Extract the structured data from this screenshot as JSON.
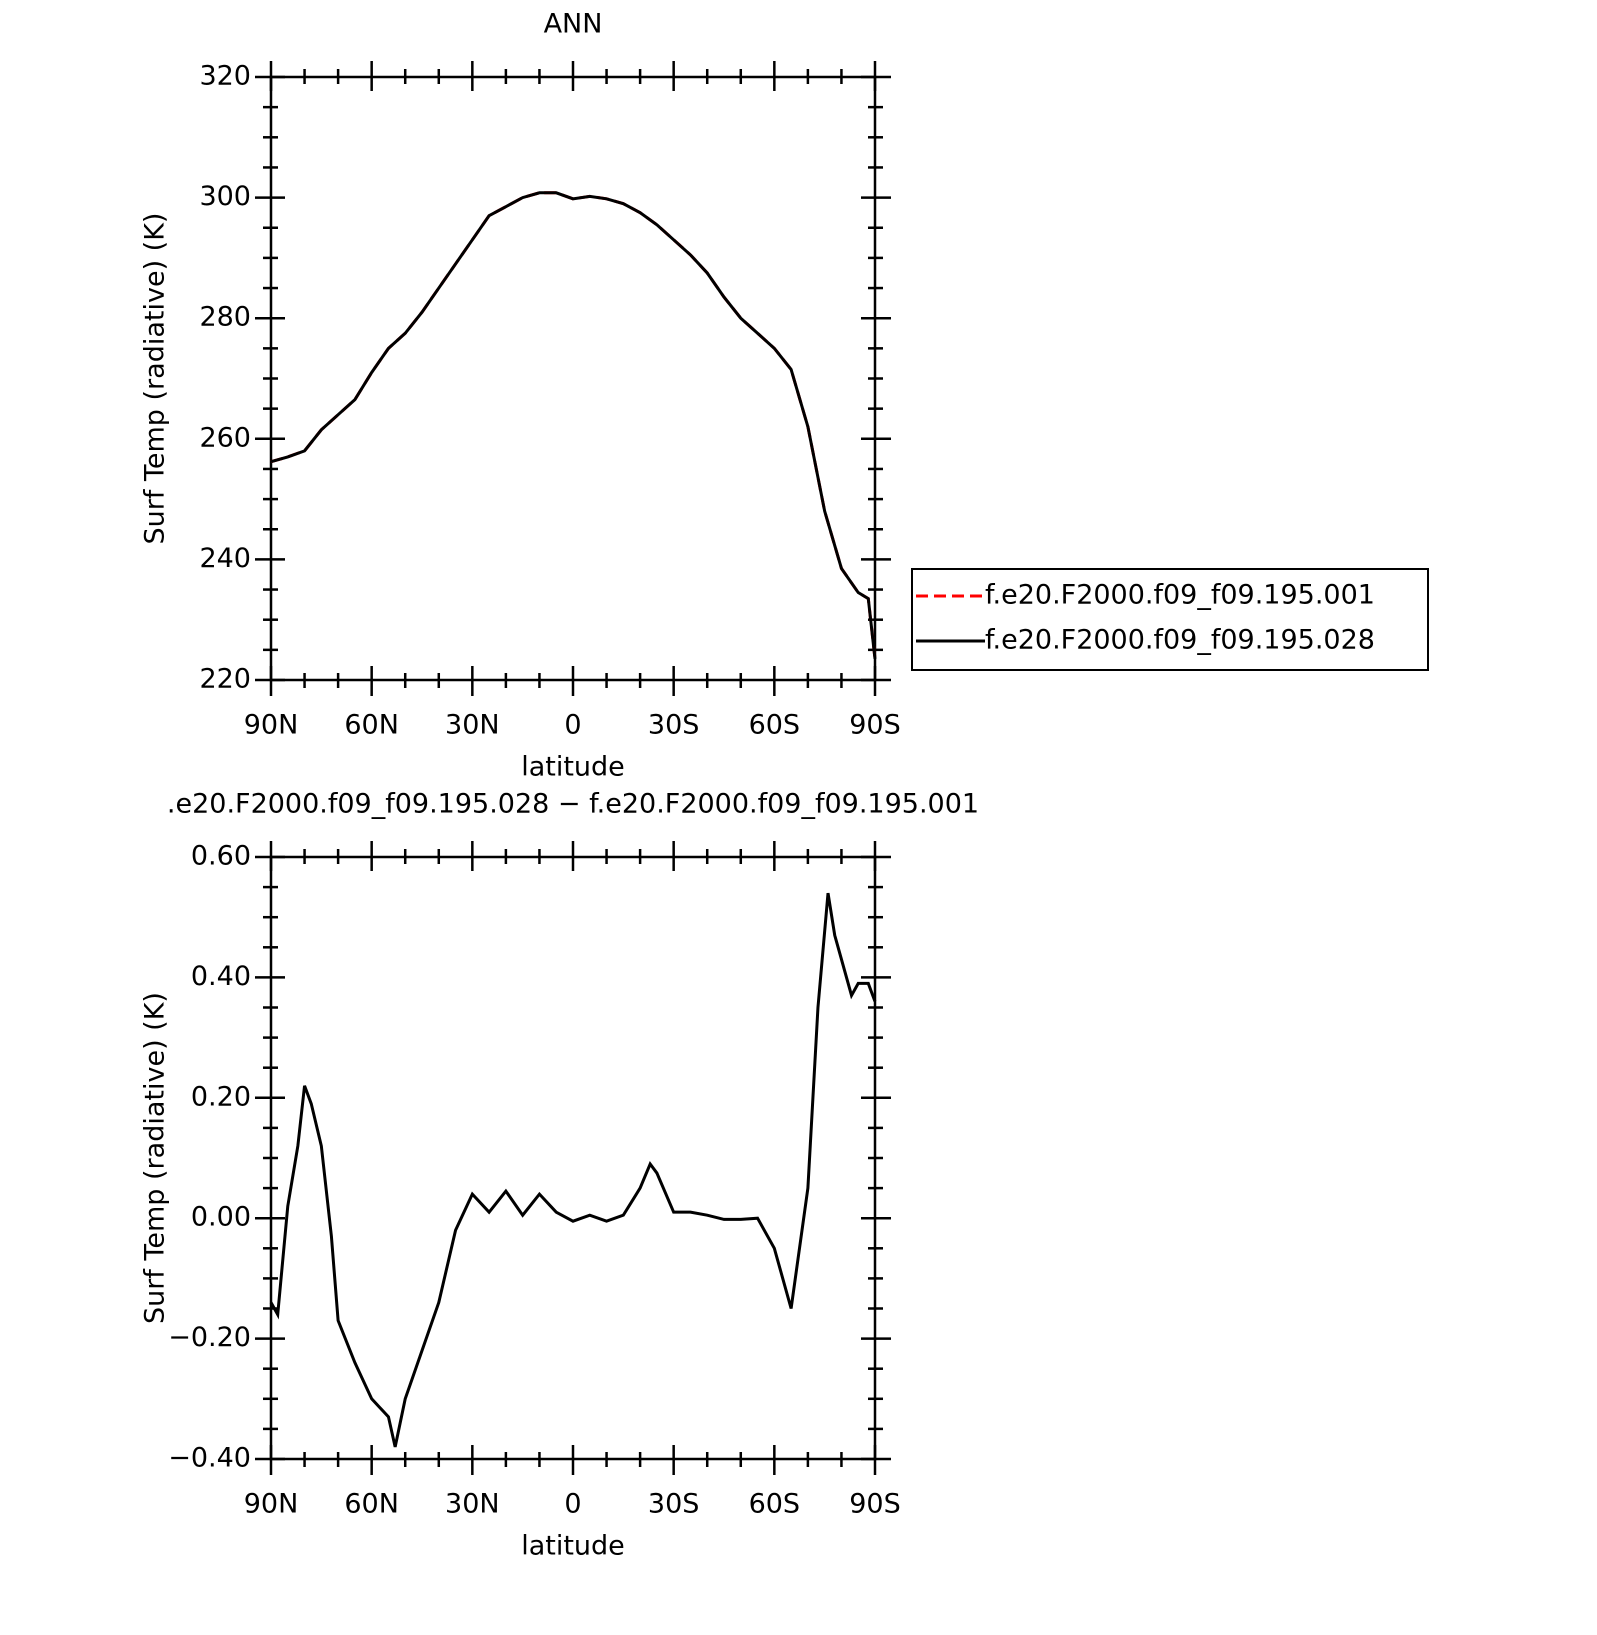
{
  "chart_data": [
    {
      "type": "line",
      "title": "ANN",
      "xlabel": "latitude",
      "ylabel": "Surf Temp (radiative) (K)",
      "x": [
        90,
        85,
        80,
        75,
        70,
        65,
        60,
        55,
        50,
        45,
        40,
        35,
        30,
        25,
        20,
        15,
        10,
        5,
        0,
        -5,
        -10,
        -15,
        -20,
        -25,
        -30,
        -35,
        -40,
        -45,
        -50,
        -55,
        -60,
        -65,
        -70,
        -75,
        -80,
        -85,
        -88,
        -90
      ],
      "xlim": [
        90,
        -90
      ],
      "xticks": [
        {
          "value": 90,
          "label": "90N"
        },
        {
          "value": 60,
          "label": "60N"
        },
        {
          "value": 30,
          "label": "30N"
        },
        0,
        {
          "value": -30,
          "label": "30S"
        },
        {
          "value": -60,
          "label": "60S"
        },
        {
          "value": -90,
          "label": "90S"
        }
      ],
      "ylim": [
        220,
        320
      ],
      "yticks": [
        220,
        240,
        260,
        280,
        300,
        320
      ],
      "legend": "right",
      "series": [
        {
          "name": "f.e20.F2000.f09_f09.195.001",
          "color": "#ff0000",
          "dash": true,
          "values": [
            256.2,
            257,
            258,
            261.5,
            264,
            266.5,
            271,
            275,
            277.5,
            281,
            285,
            289,
            293,
            297,
            298.5,
            300,
            300.8,
            300.8,
            299.8,
            300.2,
            299.8,
            299,
            297.5,
            295.5,
            293,
            290.5,
            287.5,
            283.5,
            280,
            277.5,
            275,
            271.5,
            262,
            248,
            238.5,
            234.5,
            233.5,
            223.5
          ]
        },
        {
          "name": "f.e20.F2000.f09_f09.195.028",
          "color": "#000000",
          "dash": false,
          "values": [
            256.2,
            257,
            258,
            261.5,
            264,
            266.5,
            271,
            275,
            277.5,
            281,
            285,
            289,
            293,
            297,
            298.5,
            300,
            300.8,
            300.8,
            299.8,
            300.2,
            299.8,
            299,
            297.5,
            295.5,
            293,
            290.5,
            287.5,
            283.5,
            280,
            277.5,
            275,
            271.5,
            262,
            248,
            238.5,
            234.5,
            233.5,
            223.5
          ]
        }
      ]
    },
    {
      "type": "line",
      "title": ".e20.F2000.f09_f09.195.028 − f.e20.F2000.f09_f09.195.001",
      "xlabel": "latitude",
      "ylabel": "Surf Temp (radiative) (K)",
      "x": [
        90,
        88,
        85,
        82,
        80,
        78,
        75,
        72,
        70,
        65,
        60,
        55,
        53,
        50,
        45,
        40,
        35,
        30,
        25,
        20,
        15,
        10,
        5,
        0,
        -5,
        -10,
        -15,
        -20,
        -23,
        -25,
        -30,
        -35,
        -40,
        -45,
        -50,
        -55,
        -60,
        -65,
        -70,
        -73,
        -76,
        -78,
        -80,
        -83,
        -85,
        -88,
        -90
      ],
      "xlim": [
        90,
        -90
      ],
      "xticks": [
        {
          "value": 90,
          "label": "90N"
        },
        {
          "value": 60,
          "label": "60N"
        },
        {
          "value": 30,
          "label": "30N"
        },
        0,
        {
          "value": -30,
          "label": "30S"
        },
        {
          "value": -60,
          "label": "60S"
        },
        {
          "value": -90,
          "label": "90S"
        }
      ],
      "ylim": [
        -0.4,
        0.6
      ],
      "yticks": [
        {
          "value": -0.4,
          "label": "−0.40"
        },
        {
          "value": -0.2,
          "label": "−0.20"
        },
        {
          "value": 0,
          "label": "0.00"
        },
        {
          "value": 0.2,
          "label": "0.20"
        },
        {
          "value": 0.4,
          "label": "0.40"
        },
        {
          "value": 0.6,
          "label": "0.60"
        }
      ],
      "series": [
        {
          "color": "#000000",
          "dash": false,
          "values": [
            -0.14,
            -0.16,
            0.02,
            0.12,
            0.22,
            0.19,
            0.12,
            -0.03,
            -0.17,
            -0.24,
            -0.3,
            -0.33,
            -0.38,
            -0.3,
            -0.22,
            -0.14,
            -0.02,
            0.04,
            0.01,
            0.045,
            0.005,
            0.04,
            0.01,
            -0.005,
            0.005,
            -0.005,
            0.005,
            0.05,
            0.09,
            0.075,
            0.01,
            0.01,
            0.005,
            -0.002,
            -0.002,
            0,
            -0.05,
            -0.15,
            0.05,
            0.35,
            0.54,
            0.47,
            0.43,
            0.37,
            0.39,
            0.39,
            0.36
          ]
        }
      ]
    }
  ]
}
